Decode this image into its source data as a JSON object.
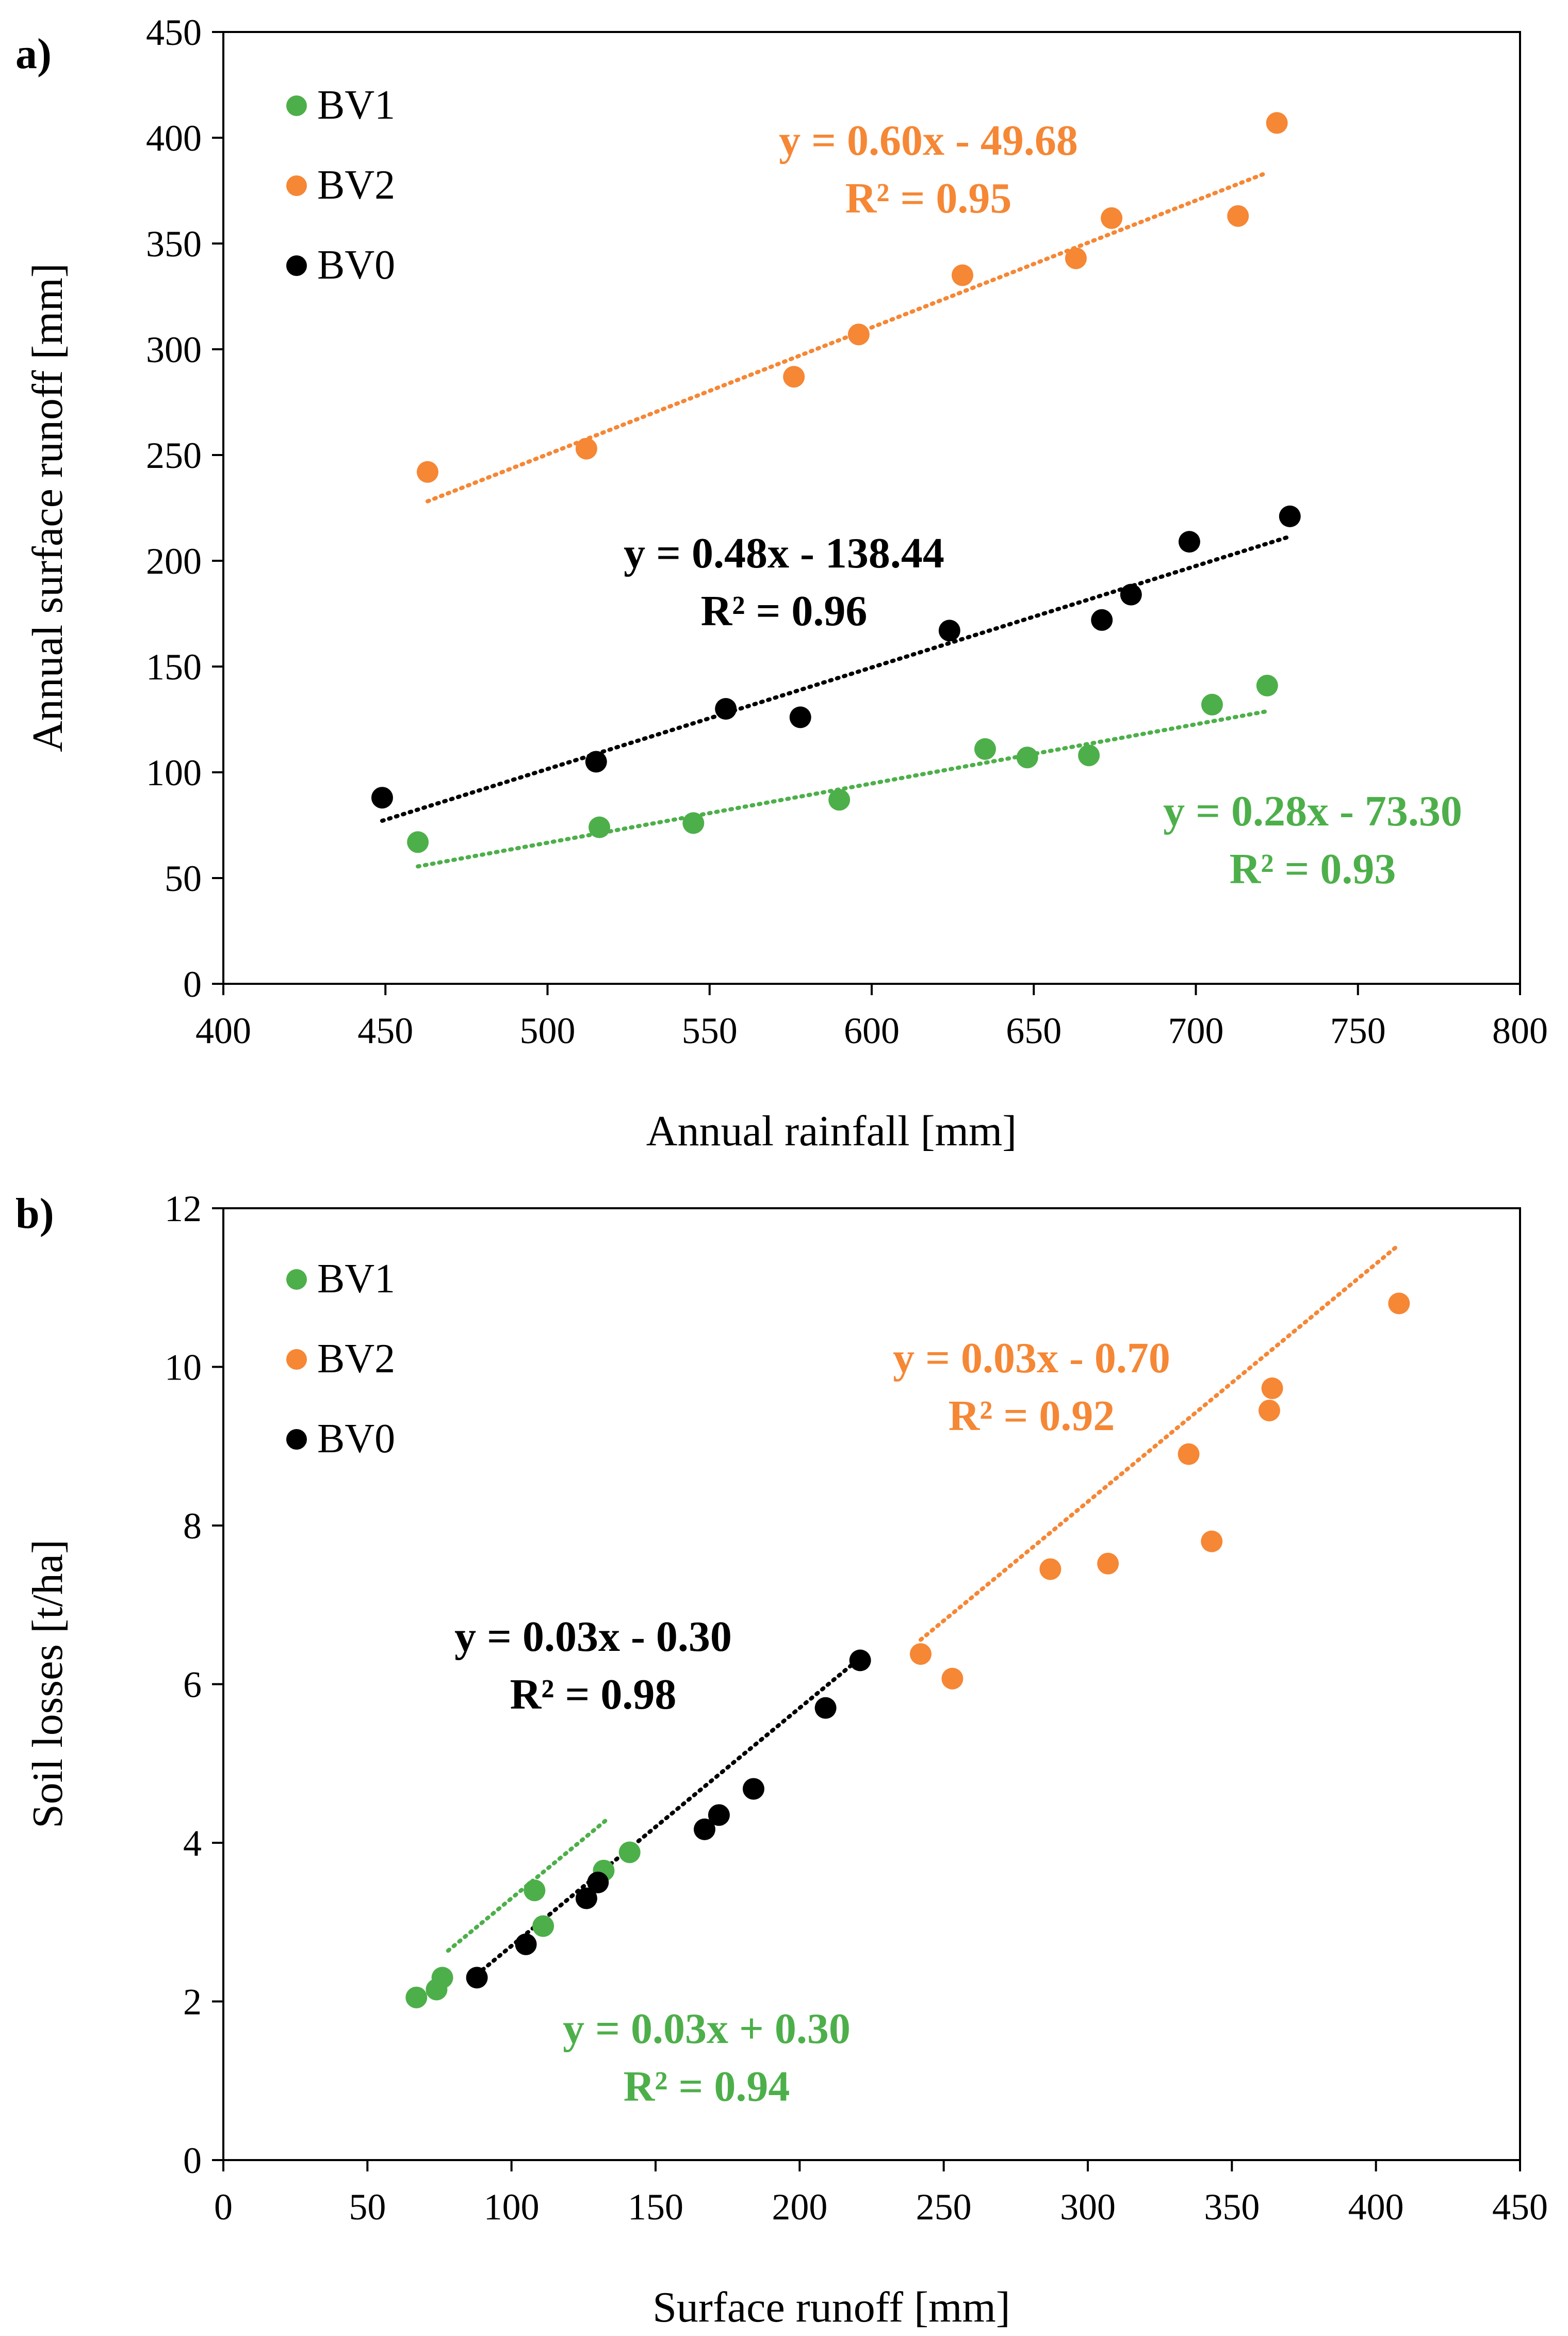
{
  "chart_data": [
    {
      "type": "scatter",
      "panel_label": "a)",
      "xlabel": "Annual rainfall [mm]",
      "ylabel": "Annual surface runoff [mm]",
      "xlim": [
        400,
        800
      ],
      "ylim": [
        0,
        450
      ],
      "xticks": [
        "400",
        "450",
        "500",
        "550",
        "600",
        "650",
        "700",
        "750",
        "800"
      ],
      "yticks": [
        "0",
        "50",
        "100",
        "150",
        "200",
        "250",
        "300",
        "350",
        "400",
        "450"
      ],
      "grid": false,
      "legend_position": "top-left",
      "legend": [
        "BV1",
        "BV2",
        "BV0"
      ],
      "series": [
        {
          "name": "BV1",
          "color": "#4daf4a",
          "x": [
            460,
            516,
            545,
            590,
            635,
            648,
            667,
            705,
            722
          ],
          "y": [
            67,
            74,
            76,
            87,
            111,
            107,
            108,
            132,
            141
          ],
          "trend": {
            "slope": 0.28,
            "intercept": -73.3,
            "x0": 460,
            "x1": 722
          },
          "equation": "y = 0.28x - 73.30",
          "r2": "R² = 0.93"
        },
        {
          "name": "BV2",
          "color": "#f58735",
          "x": [
            463,
            512,
            576,
            596,
            628,
            663,
            674,
            713,
            725
          ],
          "y": [
            242,
            253,
            287,
            307,
            335,
            343,
            362,
            363,
            407
          ],
          "trend": {
            "slope": 0.6,
            "intercept": -49.68,
            "x0": 463,
            "x1": 722
          },
          "equation": "y = 0.60x - 49.68",
          "r2": "R² = 0.95"
        },
        {
          "name": "BV0",
          "color": "#000000",
          "x": [
            449,
            515,
            555,
            578,
            624,
            671,
            680,
            698,
            729
          ],
          "y": [
            88,
            105,
            130,
            126,
            167,
            172,
            184,
            209,
            221
          ],
          "trend": {
            "slope": 0.48,
            "intercept": -138.44,
            "x0": 449,
            "x1": 729
          },
          "equation": "y = 0.48x - 138.44",
          "r2": "R² = 0.96"
        }
      ]
    },
    {
      "type": "scatter",
      "panel_label": "b)",
      "xlabel": "Surface runoff [mm]",
      "ylabel": "Soil losses [t/ha]",
      "xlim": [
        0,
        450
      ],
      "ylim": [
        0,
        12
      ],
      "xticks": [
        "0",
        "50",
        "100",
        "150",
        "200",
        "250",
        "300",
        "350",
        "400",
        "450"
      ],
      "yticks": [
        "0",
        "2",
        "4",
        "6",
        "8",
        "10",
        "12"
      ],
      "grid": false,
      "legend_position": "top-left",
      "legend": [
        "BV1",
        "BV2",
        "BV0"
      ],
      "series": [
        {
          "name": "BV1",
          "color": "#4daf4a",
          "x": [
            67,
            74,
            76,
            108,
            111,
            132,
            141
          ],
          "y": [
            2.05,
            2.15,
            2.3,
            3.4,
            2.95,
            3.65,
            3.88
          ],
          "trend": {
            "slope": 0.03,
            "intercept": 0.3,
            "x0": 78,
            "x1": 133
          },
          "equation": "y = 0.03x + 0.30",
          "r2": "R² = 0.94"
        },
        {
          "name": "BV2",
          "color": "#f58735",
          "x": [
            242,
            253,
            287,
            307,
            335,
            343,
            363,
            364,
            408
          ],
          "y": [
            6.38,
            6.07,
            7.45,
            7.52,
            8.9,
            7.8,
            9.45,
            9.73,
            10.8
          ],
          "trend": {
            "slope": 0.03,
            "intercept": -0.7,
            "x0": 242,
            "x1": 408
          },
          "equation": "y = 0.03x - 0.70",
          "r2": "R² = 0.92"
        },
        {
          "name": "BV0",
          "color": "#000000",
          "x": [
            88,
            105,
            126,
            130,
            167,
            172,
            184,
            209,
            221
          ],
          "y": [
            2.3,
            2.72,
            3.3,
            3.5,
            4.17,
            4.35,
            4.68,
            5.7,
            6.3
          ],
          "trend": {
            "slope": 0.03,
            "intercept": -0.3,
            "x0": 88,
            "x1": 221
          },
          "equation": "y = 0.03x - 0.30",
          "r2": "R² = 0.98"
        }
      ]
    }
  ]
}
